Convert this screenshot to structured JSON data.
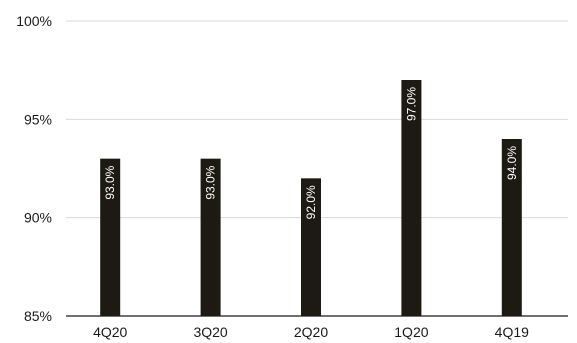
{
  "chart_data": {
    "type": "bar",
    "categories": [
      "4Q20",
      "3Q20",
      "2Q20",
      "1Q20",
      "4Q19"
    ],
    "values": [
      93.0,
      93.0,
      92.0,
      97.0,
      94.0
    ],
    "data_labels": [
      "93.0%",
      "93.0%",
      "92.0%",
      "97.0%",
      "94.0%"
    ],
    "ylim": [
      85,
      100
    ],
    "yticks": [
      85,
      90,
      95,
      100
    ],
    "ytick_labels": [
      "85%",
      "90%",
      "95%",
      "100%"
    ],
    "grid": true,
    "bar_color": "#1c1a12",
    "grid_color": "#d9d9d9",
    "axis_color": "#1a1a1a"
  }
}
